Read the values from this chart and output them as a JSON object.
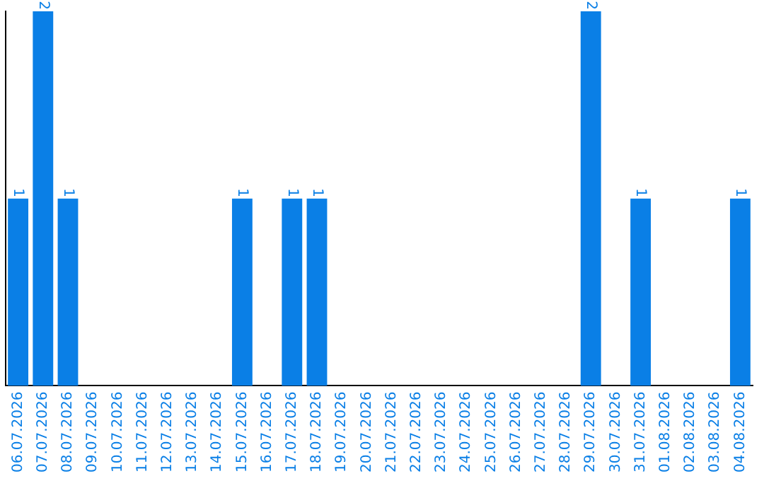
{
  "chart_data": {
    "type": "bar",
    "categories": [
      "06.07.2026",
      "07.07.2026",
      "08.07.2026",
      "09.07.2026",
      "10.07.2026",
      "11.07.2026",
      "12.07.2026",
      "13.07.2026",
      "14.07.2026",
      "15.07.2026",
      "16.07.2026",
      "17.07.2026",
      "18.07.2026",
      "19.07.2026",
      "20.07.2026",
      "21.07.2026",
      "22.07.2026",
      "23.07.2026",
      "24.07.2026",
      "25.07.2026",
      "26.07.2026",
      "27.07.2026",
      "28.07.2026",
      "29.07.2026",
      "30.07.2026",
      "31.07.2026",
      "01.08.2026",
      "02.08.2026",
      "03.08.2026",
      "04.08.2026"
    ],
    "values": [
      1,
      2,
      1,
      0,
      0,
      0,
      0,
      0,
      0,
      1,
      0,
      1,
      1,
      0,
      0,
      0,
      0,
      0,
      0,
      0,
      0,
      0,
      0,
      2,
      0,
      1,
      0,
      0,
      0,
      1
    ],
    "value_labels": [
      "1",
      "2",
      "1",
      null,
      null,
      null,
      null,
      null,
      null,
      "1",
      null,
      "1",
      "1",
      null,
      null,
      null,
      null,
      null,
      null,
      null,
      null,
      null,
      null,
      "2",
      null,
      "1",
      null,
      null,
      null,
      "1"
    ],
    "color": "#0a7fe6",
    "grid": false,
    "legend": false,
    "tick_labels": "x"
  }
}
